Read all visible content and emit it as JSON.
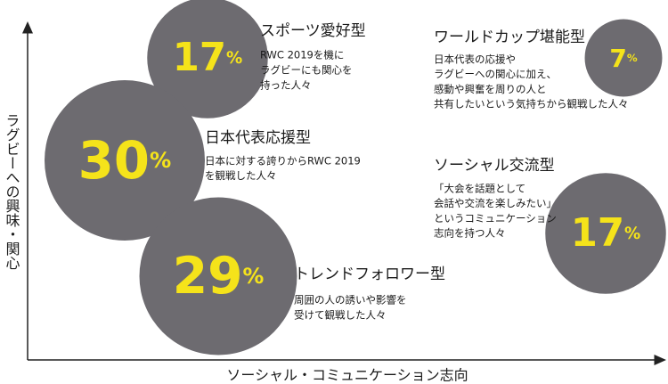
{
  "chart_data": {
    "type": "bubble",
    "x_label": "ソーシャル・コミュニケーション志向",
    "y_label": "ラグビーへの興味・関心",
    "categories": [
      "スポーツ愛好型",
      "ワールドカップ堪能型",
      "日本代表応援型",
      "ソーシャル交流型",
      "トレンドフォロワー型"
    ],
    "values": [
      17,
      7,
      30,
      17,
      29
    ],
    "unit": "%",
    "descriptions": [
      [
        "RWC 2019を機に",
        "ラグビーにも関心を",
        "持った人々"
      ],
      [
        "日本代表の応援や",
        "ラグビーへの関心に加え、",
        "感動や興奮を周りの人と",
        "共有したいという気持ちから観戦した人々"
      ],
      [
        "日本に対する誇りからRWC 2019",
        "を観戦した人々"
      ],
      [
        "「大会を話題として",
        "会話や交流を楽しみたい」",
        "というコミュニケーション",
        "志向を持つ人々"
      ],
      [
        "周囲の人の誘いや影響を",
        "受けて観戦した人々"
      ]
    ],
    "color": "#6d6b70",
    "label_color": "#f5e31a"
  }
}
